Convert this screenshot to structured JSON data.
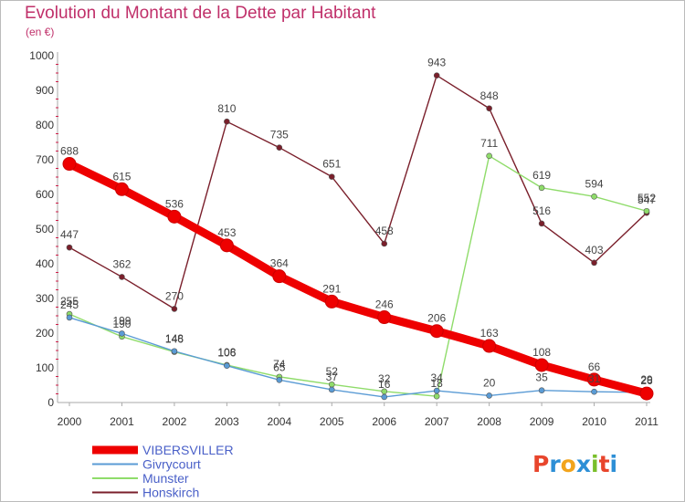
{
  "header": {
    "title": "Evolution du Montant de la Dette par Habitant",
    "subtitle": "(en €)"
  },
  "logo": {
    "text": "Proxiti",
    "colors": [
      "#e8452c",
      "#2d8fd6",
      "#f2a41c",
      "#2d8fd6",
      "#7abf2a",
      "#e8452c",
      "#2d8fd6"
    ]
  },
  "chart_data": {
    "type": "line",
    "x": [
      "2000",
      "2001",
      "2002",
      "2003",
      "2004",
      "2005",
      "2006",
      "2007",
      "2008",
      "2009",
      "2010",
      "2011"
    ],
    "ylim": [
      0,
      1000
    ],
    "yticks": [
      "0",
      "100",
      "200",
      "300",
      "400",
      "500",
      "600",
      "700",
      "800",
      "900",
      "1000"
    ],
    "grid": false,
    "legend_position": "bottom-left",
    "series": [
      {
        "name": "VIBERSVILLER",
        "color": "#ee0000",
        "values": [
          688,
          615,
          536,
          453,
          364,
          291,
          246,
          206,
          163,
          108,
          66,
          26
        ],
        "labels": [
          "688",
          "615",
          "536",
          "453",
          "364",
          "291",
          "246",
          "206",
          "163",
          "108",
          "66",
          "26"
        ]
      },
      {
        "name": "Givrycourt",
        "color": "#5a9bd5",
        "values": [
          245,
          199,
          148,
          106,
          65,
          37,
          16,
          34,
          20,
          35,
          31,
          29
        ],
        "labels": [
          "245",
          "199",
          "148",
          "106",
          "65",
          "37",
          "16",
          "34",
          "20",
          "35",
          "31",
          "29"
        ]
      },
      {
        "name": "Munster",
        "color": "#8fdc6a",
        "values": [
          255,
          190,
          146,
          108,
          74,
          52,
          32,
          18,
          711,
          619,
          594,
          552
        ],
        "labels": [
          "255",
          "190",
          "146",
          "108",
          "74",
          "52",
          "32",
          "18",
          "711",
          "619",
          "594",
          "552"
        ]
      },
      {
        "name": "Honskirch",
        "color": "#7a1f2b",
        "values": [
          447,
          362,
          270,
          810,
          735,
          651,
          458,
          943,
          848,
          516,
          403,
          547
        ],
        "labels": [
          "447",
          "362",
          "270",
          "810",
          "735",
          "651",
          "458",
          "943",
          "848",
          "516",
          "403",
          "547"
        ]
      }
    ]
  }
}
